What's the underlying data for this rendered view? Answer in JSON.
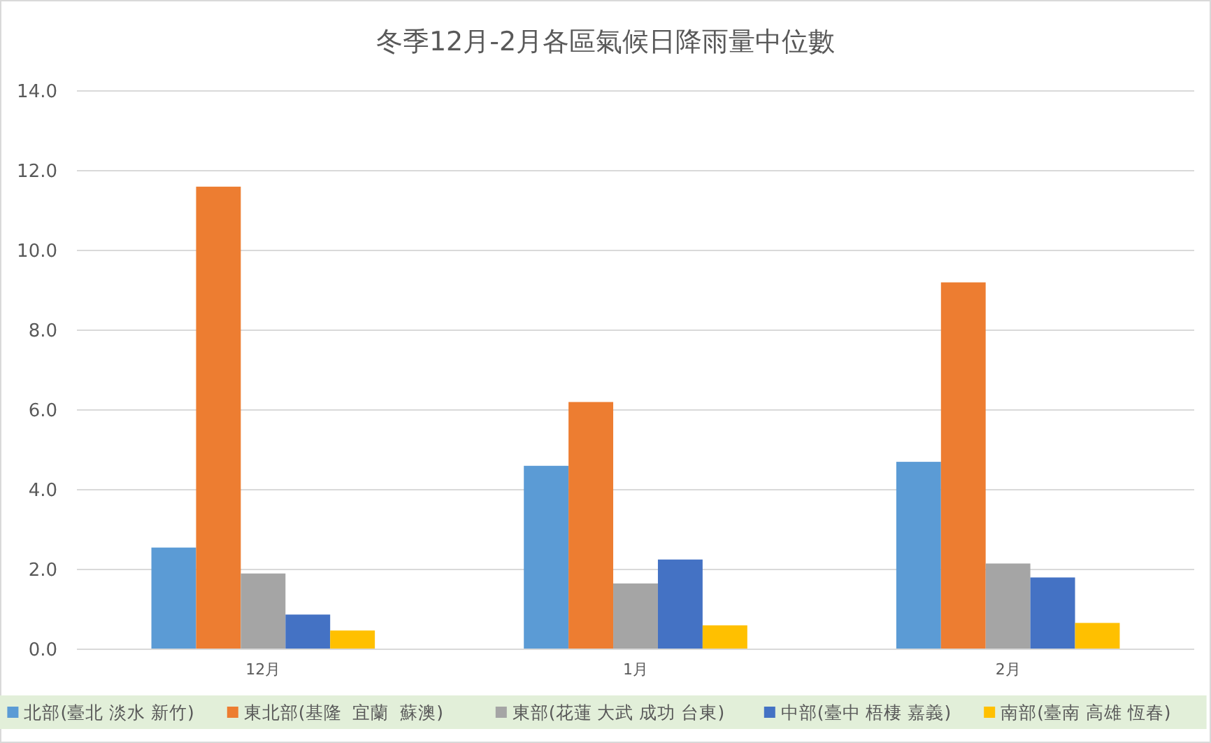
{
  "chart_data": {
    "type": "bar",
    "title": "冬季12月-2月各區氣候日降雨量中位數",
    "categories": [
      "12月",
      "1月",
      "2月"
    ],
    "series": [
      {
        "name": "北部(臺北 淡水 新竹)",
        "color": "#5b9bd5",
        "values": [
          2.55,
          4.6,
          4.7
        ]
      },
      {
        "name": "東北部(基隆  宜蘭  蘇澳)",
        "color": "#ed7d31",
        "values": [
          11.6,
          6.2,
          9.2
        ]
      },
      {
        "name": "東部(花蓮 大武 成功 台東)",
        "color": "#a5a5a5",
        "values": [
          1.9,
          1.65,
          2.15
        ]
      },
      {
        "name": "中部(臺中 梧棲 嘉義)",
        "color": "#4472c4",
        "values": [
          0.87,
          2.25,
          1.8
        ]
      },
      {
        "name": "南部(臺南 高雄 恆春)",
        "color": "#ffc000",
        "values": [
          0.47,
          0.6,
          0.66
        ]
      }
    ],
    "ylim": [
      0,
      14
    ],
    "yticks": [
      {
        "value": 0,
        "label": "0.0"
      },
      {
        "value": 2,
        "label": "2.0"
      },
      {
        "value": 4,
        "label": "4.0"
      },
      {
        "value": 6,
        "label": "6.0"
      },
      {
        "value": 8,
        "label": "8.0"
      },
      {
        "value": 10,
        "label": "10.0"
      },
      {
        "value": 12,
        "label": "12.0"
      },
      {
        "value": 14,
        "label": "14.0"
      }
    ],
    "grid": "y",
    "legend": "bottom"
  }
}
